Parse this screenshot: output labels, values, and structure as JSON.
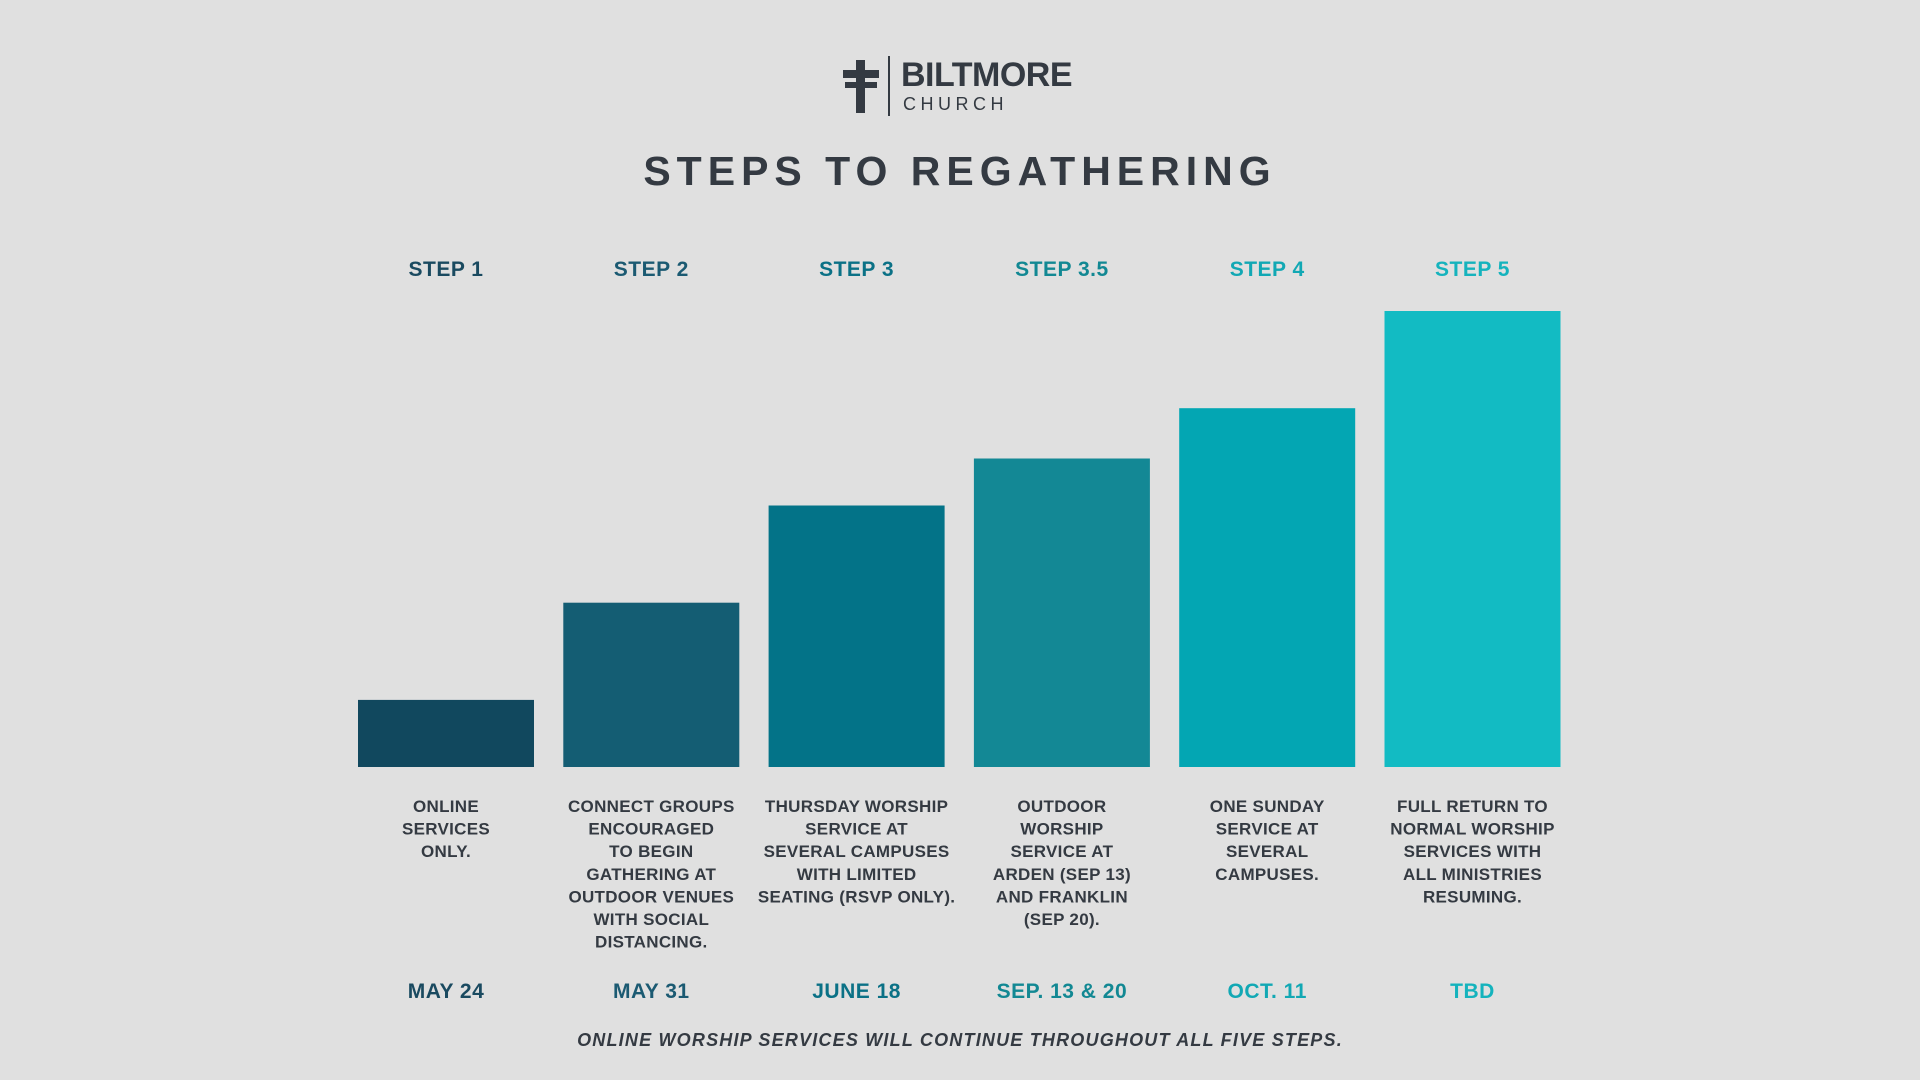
{
  "logo": {
    "name": "BILTMORE",
    "sub": "CHURCH"
  },
  "chart_data": {
    "type": "bar",
    "title": "STEPS TO REGATHERING",
    "categories": [
      "STEP 1",
      "STEP 2",
      "STEP 3",
      "STEP 3.5",
      "STEP 4",
      "STEP 5"
    ],
    "values": [
      1,
      2.45,
      3.9,
      4.6,
      5.35,
      6.8
    ],
    "descriptions": [
      [
        "ONLINE",
        "SERVICES",
        "ONLY."
      ],
      [
        "CONNECT GROUPS",
        "ENCOURAGED",
        "TO BEGIN",
        "GATHERING AT",
        "OUTDOOR VENUES",
        "WITH SOCIAL",
        "DISTANCING."
      ],
      [
        "THURSDAY WORSHIP",
        "SERVICE AT",
        "SEVERAL CAMPUSES",
        "WITH LIMITED",
        "SEATING (RSVP ONLY)."
      ],
      [
        "OUTDOOR",
        "WORSHIP",
        "SERVICE AT",
        "ARDEN (SEP 13)",
        "AND FRANKLIN",
        "(SEP 20)."
      ],
      [
        "ONE SUNDAY",
        "SERVICE AT",
        "SEVERAL",
        "CAMPUSES."
      ],
      [
        "FULL RETURN TO",
        "NORMAL WORSHIP",
        "SERVICES WITH",
        "ALL MINISTRIES",
        "RESUMING."
      ]
    ],
    "dates": [
      "MAY 24",
      "MAY 31",
      "JUNE 18",
      "SEP. 13 & 20",
      "OCT. 11",
      "TBD"
    ],
    "colors": [
      "#11485e",
      "#145d73",
      "#037388",
      "#138895",
      "#03a6b3",
      "#12bbc3"
    ],
    "label_colors": [
      "#1a4a60",
      "#1b5a72",
      "#0b7186",
      "#128893",
      "#12a8b4",
      "#15b3bd"
    ],
    "ylim": [
      0,
      6.8
    ],
    "grid": false,
    "legend": "none"
  },
  "footnote": "ONLINE WORSHIP SERVICES WILL CONTINUE THROUGHOUT ALL FIVE STEPS."
}
